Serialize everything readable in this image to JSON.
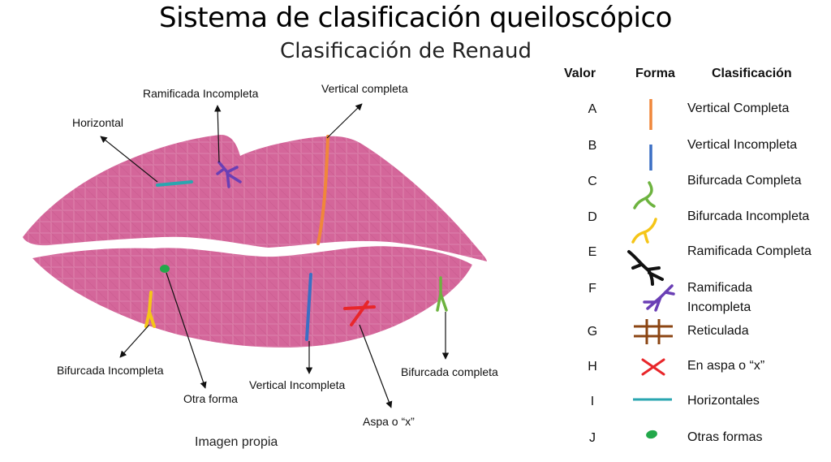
{
  "title": "Sistema de clasificación queiloscópico",
  "subtitle": "Clasificación de Renaud",
  "caption": "Imagen propia",
  "colors": {
    "lip": "#d4669a",
    "vertical_completa": "#f0873a",
    "vertical_incompleta": "#3b6fc4",
    "bifurcada_completa": "#6db33f",
    "bifurcada_incompleta": "#f5c518",
    "ramificada_completa": "#111111",
    "ramificada_incompleta": "#6a3fb5",
    "reticulada": "#8b4513",
    "aspa": "#e8262a",
    "horizontal": "#2aa6b0",
    "otras": "#22a84a"
  },
  "labels": {
    "ramificada_incompleta": "Ramificada Incompleta",
    "vertical_completa": "Vertical completa",
    "horizontal": "Horizontal",
    "bifurcada_incompleta": "Bifurcada Incompleta",
    "otra_forma": "Otra forma",
    "vertical_incompleta": "Vertical Incompleta",
    "aspa": "Aspa o “x”",
    "bifurcada_completa": "Bifurcada completa"
  },
  "table": {
    "headers": [
      "Valor",
      "Forma",
      "Clasificación"
    ],
    "rows": [
      {
        "valor": "A",
        "forma": "vertical-line-icon",
        "clasificacion": "Vertical Completa"
      },
      {
        "valor": "B",
        "forma": "vertical-line-icon",
        "clasificacion": "Vertical Incompleta"
      },
      {
        "valor": "C",
        "forma": "bifurcation-icon",
        "clasificacion": "Bifurcada Completa"
      },
      {
        "valor": "D",
        "forma": "bifurcation-icon",
        "clasificacion": "Bifurcada Incompleta"
      },
      {
        "valor": "E",
        "forma": "branch-icon",
        "clasificacion": "Ramificada Completa"
      },
      {
        "valor": "F",
        "forma": "branch-icon",
        "clasificacion": "Ramificada\nIncompleta"
      },
      {
        "valor": "G",
        "forma": "grid-icon",
        "clasificacion": "Reticulada"
      },
      {
        "valor": "H",
        "forma": "x-icon",
        "clasificacion": "En aspa o “x”"
      },
      {
        "valor": "I",
        "forma": "horizontal-line-icon",
        "clasificacion": "Horizontales"
      },
      {
        "valor": "J",
        "forma": "blob-icon",
        "clasificacion": "Otras formas"
      }
    ]
  }
}
